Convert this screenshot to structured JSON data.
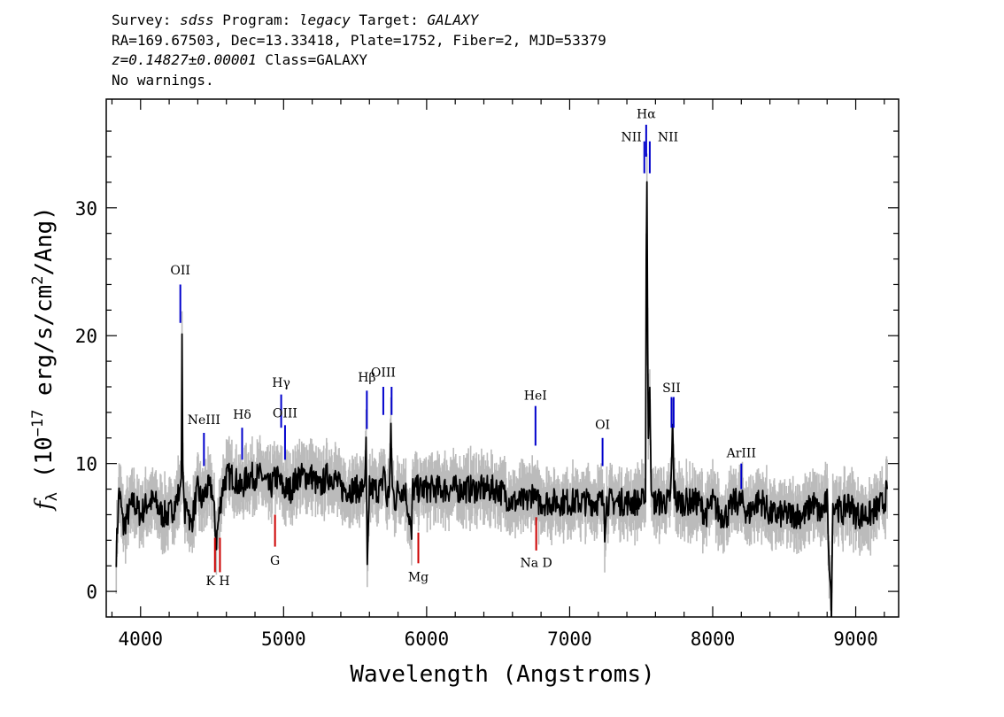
{
  "header": {
    "survey_label": "Survey: ",
    "survey": "sdss",
    "program_label": " Program: ",
    "program": "legacy",
    "target_label": " Target: ",
    "target": "GALAXY",
    "line2": "RA=169.67503, Dec=13.33418, Plate=1752, Fiber=2, MJD=53379",
    "redshift": "z=0.14827±0.00001",
    "class_text": " Class=GALAXY",
    "warnings": "No warnings."
  },
  "chart_data": {
    "type": "line",
    "xlabel": "Wavelength (Angstroms)",
    "ylabel_parts": {
      "f": "f",
      "sub": "λ",
      "a": " (10",
      "exp": "−17",
      "b": " erg/s/cm",
      "exp2": "2",
      "c": "/Ang)"
    },
    "xlim": [
      3760,
      9300
    ],
    "ylim": [
      -2,
      38.5
    ],
    "xticks": [
      4000,
      5000,
      6000,
      7000,
      8000,
      9000
    ],
    "yticks": [
      0,
      10,
      20,
      30
    ],
    "grid": false,
    "colors": {
      "flux": "#000000",
      "error_band": "#bbbbbb",
      "emission": "#0000cc",
      "absorption": "#cc0000"
    },
    "series": [
      {
        "style": "flux",
        "x": [
          3830,
          3850,
          3880,
          3910,
          3950,
          4000,
          4050,
          4100,
          4150,
          4200,
          4250,
          4275,
          4285,
          4290,
          4295,
          4300,
          4310,
          4330,
          4350,
          4400,
          4430,
          4460,
          4500,
          4530,
          4550,
          4570,
          4600,
          4650,
          4700,
          4750,
          4800,
          4850,
          4900,
          4950,
          5000,
          5050,
          5100,
          5150,
          5200,
          5250,
          5300,
          5350,
          5400,
          5450,
          5500,
          5550,
          5570,
          5577,
          5585,
          5600,
          5650,
          5690,
          5700,
          5720,
          5740,
          5750,
          5760,
          5780,
          5800,
          5850,
          5890,
          5895,
          5900,
          5950,
          6000,
          6050,
          6100,
          6200,
          6300,
          6400,
          6500,
          6600,
          6700,
          6750,
          6760,
          6780,
          6850,
          6950,
          7050,
          7150,
          7240,
          7245,
          7260,
          7300,
          7400,
          7500,
          7520,
          7530,
          7535,
          7540,
          7545,
          7550,
          7560,
          7570,
          7580,
          7600,
          7650,
          7700,
          7710,
          7720,
          7730,
          7750,
          7800,
          7900,
          7950,
          8000,
          8050,
          8100,
          8150,
          8200,
          8250,
          8300,
          8350,
          8400,
          8450,
          8500,
          8550,
          8600,
          8650,
          8700,
          8750,
          8800,
          8830,
          8840,
          8850,
          8860,
          8900,
          8950,
          9000,
          9100,
          9200,
          9220
        ],
        "y": [
          3,
          8,
          5,
          6,
          7,
          6,
          7,
          7,
          6,
          6,
          7,
          8,
          9,
          20,
          10,
          8,
          6,
          7,
          5,
          8,
          7,
          8,
          8,
          4,
          6,
          8,
          9,
          9,
          8,
          9,
          9,
          9,
          8,
          9,
          8,
          8,
          9,
          9,
          9,
          8,
          9,
          9,
          8,
          8,
          8,
          8,
          9,
          12,
          2,
          8,
          8,
          8,
          10,
          7,
          8,
          13,
          8,
          7,
          8,
          8,
          5,
          4,
          8,
          8,
          8,
          8,
          8,
          8,
          8,
          8,
          8,
          7,
          7,
          8,
          7,
          7,
          7,
          7,
          7,
          7,
          7,
          4,
          7,
          7,
          7,
          7,
          7,
          7,
          26,
          32,
          20,
          12,
          16,
          8,
          7,
          7,
          7,
          7,
          9,
          13,
          8,
          7,
          7,
          7,
          6,
          7,
          6,
          6,
          7,
          7,
          6,
          7,
          7,
          6,
          6,
          6,
          6,
          6,
          6,
          7,
          6,
          7,
          -2,
          7,
          6,
          7,
          6,
          7,
          6,
          6,
          7,
          8
        ]
      }
    ],
    "annotations": [
      {
        "label": "OII",
        "kind": "emission",
        "x": 4278,
        "y_line": [
          21,
          24
        ],
        "y_text": 24.8,
        "text_pos": "top"
      },
      {
        "label": "NeIII",
        "kind": "emission",
        "x": 4443,
        "y_line": [
          9.8,
          12.4
        ],
        "y_text": 13.1,
        "text_pos": "top"
      },
      {
        "label": "Hδ",
        "kind": "emission",
        "x": 4710,
        "y_line": [
          10.3,
          12.8
        ],
        "y_text": 13.5,
        "text_pos": "top"
      },
      {
        "label": "Hγ",
        "kind": "emission",
        "x": 4983,
        "y_line": [
          12.8,
          15.4
        ],
        "y_text": 16.0,
        "text_pos": "top"
      },
      {
        "label": "OIII",
        "kind": "emission",
        "x": 5010,
        "y_line": [
          10.3,
          13.0
        ],
        "y_text": 13.6,
        "text_pos": "top"
      },
      {
        "label": "Hβ",
        "kind": "emission",
        "x": 5582,
        "y_line": [
          12.7,
          15.7
        ],
        "y_text": 16.4,
        "text_pos": "top"
      },
      {
        "label": "OIII",
        "kind": "emission",
        "x": 5697,
        "y_line": [
          13.8,
          16.0
        ],
        "y_text": 16.8,
        "text_pos": "top"
      },
      {
        "label": "",
        "kind": "emission",
        "x": 5755,
        "y_line": [
          13.8,
          16.0
        ]
      },
      {
        "label": "HeI",
        "kind": "emission",
        "x": 6761,
        "y_line": [
          11.4,
          14.5
        ],
        "y_text": 15.0,
        "text_pos": "top"
      },
      {
        "label": "OI",
        "kind": "emission",
        "x": 7230,
        "y_line": [
          9.8,
          12.0
        ],
        "y_text": 12.7,
        "text_pos": "top"
      },
      {
        "label": "Hα",
        "kind": "emission",
        "x": 7535,
        "y_line": [
          34.0,
          36.5
        ],
        "y_text": 37.0,
        "text_pos": "top"
      },
      {
        "label": "NII",
        "kind": "emission",
        "x": 7522,
        "y_line": [
          32.7,
          35.2
        ],
        "y_text": 35.2,
        "text_pos": "left"
      },
      {
        "label": "NII",
        "kind": "emission",
        "x": 7560,
        "y_line": [
          32.7,
          35.2
        ],
        "y_text": 35.2,
        "text_pos": "right"
      },
      {
        "label": "SII",
        "kind": "emission",
        "x": 7712,
        "y_line": [
          12.8,
          15.2
        ],
        "y_text": 15.6,
        "text_pos": "top"
      },
      {
        "label": "",
        "kind": "emission",
        "x": 7727,
        "y_line": [
          12.8,
          15.2
        ]
      },
      {
        "label": "ArIII",
        "kind": "emission",
        "x": 8200,
        "y_line": [
          8.0,
          10.0
        ],
        "y_text": 10.5,
        "text_pos": "top"
      },
      {
        "label": "",
        "kind": "absorption",
        "x": 4520,
        "y_line": [
          1.5,
          4.2
        ]
      },
      {
        "label": "",
        "kind": "absorption",
        "x": 4555,
        "y_line": [
          1.5,
          4.2
        ]
      },
      {
        "label": "K H",
        "kind": "absorption",
        "x": 4540,
        "y_line": [
          4.2,
          4.2
        ],
        "y_text": 0.5,
        "text_pos": "bottom"
      },
      {
        "label": "G",
        "kind": "absorption",
        "x": 4940,
        "y_line": [
          3.5,
          6.0
        ],
        "y_text": 2.1,
        "text_pos": "bottom"
      },
      {
        "label": "Mg",
        "kind": "absorption",
        "x": 5942,
        "y_line": [
          2.2,
          4.6
        ],
        "y_text": 0.8,
        "text_pos": "bottom"
      },
      {
        "label": "Na D",
        "kind": "absorption",
        "x": 6766,
        "y_line": [
          3.2,
          5.8
        ],
        "y_text": 1.9,
        "text_pos": "bottom"
      }
    ]
  }
}
